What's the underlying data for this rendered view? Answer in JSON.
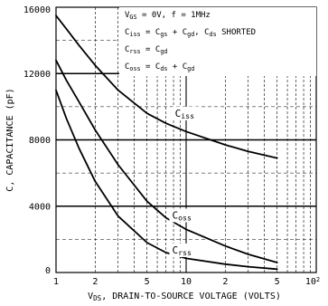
{
  "chart_data": {
    "type": "line",
    "xscale": "log",
    "xlim": [
      1,
      100
    ],
    "ylim": [
      0,
      16000
    ],
    "xlabel": {
      "main": "V",
      "sub": "DS",
      "rest": ", DRAIN-TO-SOURCE VOLTAGE (VOLTS)"
    },
    "ylabel": "C, CAPACITANCE (pF)",
    "x_ticks": [
      {
        "value": 1,
        "base": "1",
        "sup": ""
      },
      {
        "value": 2,
        "base": "2",
        "sup": ""
      },
      {
        "value": 5,
        "base": "5",
        "sup": ""
      },
      {
        "value": 10,
        "base": "10",
        "sup": ""
      },
      {
        "value": 20,
        "base": "2",
        "sup": ""
      },
      {
        "value": 50,
        "base": "5",
        "sup": ""
      },
      {
        "value": 100,
        "base": "10",
        "sup": "2"
      }
    ],
    "y_ticks": [
      {
        "value": 0,
        "label": "0"
      },
      {
        "value": 4000,
        "label": "4000"
      },
      {
        "value": 8000,
        "label": "8000"
      },
      {
        "value": 12000,
        "label": "12000"
      },
      {
        "value": 16000,
        "label": "16000"
      }
    ],
    "annotations": [
      [
        {
          "t": "V"
        },
        {
          "t": "GS",
          "s": "sub"
        },
        {
          "t": " = 0V,  f = 1MHz"
        }
      ],
      [
        {
          "t": "C"
        },
        {
          "t": "iss",
          "s": "sub"
        },
        {
          "t": " = C"
        },
        {
          "t": "gs",
          "s": "sub"
        },
        {
          "t": " + C"
        },
        {
          "t": "gd",
          "s": "sub"
        },
        {
          "t": ",  C"
        },
        {
          "t": "ds",
          "s": "sub"
        },
        {
          "t": " SHORTED"
        }
      ],
      [
        {
          "t": "C"
        },
        {
          "t": "rss",
          "s": "sub"
        },
        {
          "t": " = C"
        },
        {
          "t": "gd",
          "s": "sub"
        }
      ],
      [
        {
          "t": "C"
        },
        {
          "t": "oss",
          "s": "sub"
        },
        {
          "t": " = C"
        },
        {
          "t": "ds",
          "s": "sub"
        },
        {
          "t": " + C"
        },
        {
          "t": "gd",
          "s": "sub"
        }
      ]
    ],
    "series": [
      {
        "name": "Ciss",
        "label_main": "C",
        "label_sub": "iss",
        "label_at": [
          8.2,
          9400
        ],
        "x": [
          1,
          1.2,
          1.5,
          2,
          3,
          5,
          7,
          10,
          20,
          30,
          50
        ],
        "y": [
          15500,
          14700,
          13700,
          12500,
          11000,
          9600,
          9000,
          8500,
          7700,
          7300,
          6900
        ]
      },
      {
        "name": "Coss",
        "label_main": "C",
        "label_sub": "oss",
        "label_at": [
          7.8,
          3250
        ],
        "x": [
          1,
          1.2,
          1.5,
          2,
          3,
          5,
          7,
          10,
          20,
          30,
          50
        ],
        "y": [
          12800,
          11600,
          10300,
          8600,
          6500,
          4300,
          3300,
          2600,
          1600,
          1100,
          600
        ]
      },
      {
        "name": "Crss",
        "label_main": "C",
        "label_sub": "rss",
        "label_at": [
          7.8,
          1150
        ],
        "x": [
          1,
          1.2,
          1.5,
          2,
          3,
          5,
          7,
          10,
          20,
          30,
          50
        ],
        "y": [
          11000,
          9300,
          7500,
          5500,
          3400,
          1800,
          1200,
          850,
          500,
          350,
          200
        ]
      }
    ]
  }
}
